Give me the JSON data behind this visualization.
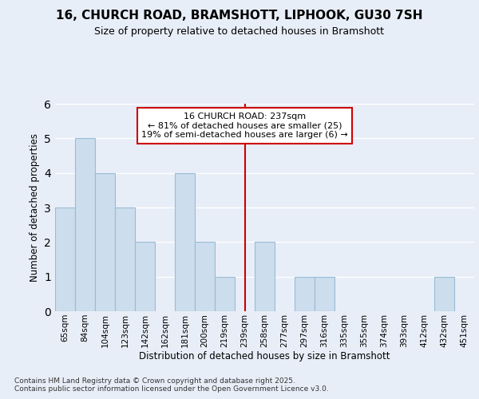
{
  "title_line1": "16, CHURCH ROAD, BRAMSHOTT, LIPHOOK, GU30 7SH",
  "title_line2": "Size of property relative to detached houses in Bramshott",
  "xlabel": "Distribution of detached houses by size in Bramshott",
  "ylabel": "Number of detached properties",
  "categories": [
    "65sqm",
    "84sqm",
    "104sqm",
    "123sqm",
    "142sqm",
    "162sqm",
    "181sqm",
    "200sqm",
    "219sqm",
    "239sqm",
    "258sqm",
    "277sqm",
    "297sqm",
    "316sqm",
    "335sqm",
    "355sqm",
    "374sqm",
    "393sqm",
    "412sqm",
    "432sqm",
    "451sqm"
  ],
  "values": [
    3,
    5,
    4,
    3,
    2,
    0,
    4,
    2,
    1,
    0,
    2,
    0,
    1,
    1,
    0,
    0,
    0,
    0,
    0,
    1,
    0
  ],
  "bar_color": "#ccdded",
  "bar_edge_color": "#99bbd4",
  "vline_index": 9,
  "vline_color": "#cc0000",
  "annotation_text": "16 CHURCH ROAD: 237sqm\n← 81% of detached houses are smaller (25)\n19% of semi-detached houses are larger (6) →",
  "annotation_box_color": "#ffffff",
  "annotation_box_edge": "#cc0000",
  "ylim": [
    0,
    6
  ],
  "yticks": [
    0,
    1,
    2,
    3,
    4,
    5,
    6
  ],
  "background_color": "#e8eef8",
  "plot_bg_color": "#e8eef8",
  "grid_color": "#ffffff",
  "footer": "Contains HM Land Registry data © Crown copyright and database right 2025.\nContains public sector information licensed under the Open Government Licence v3.0."
}
